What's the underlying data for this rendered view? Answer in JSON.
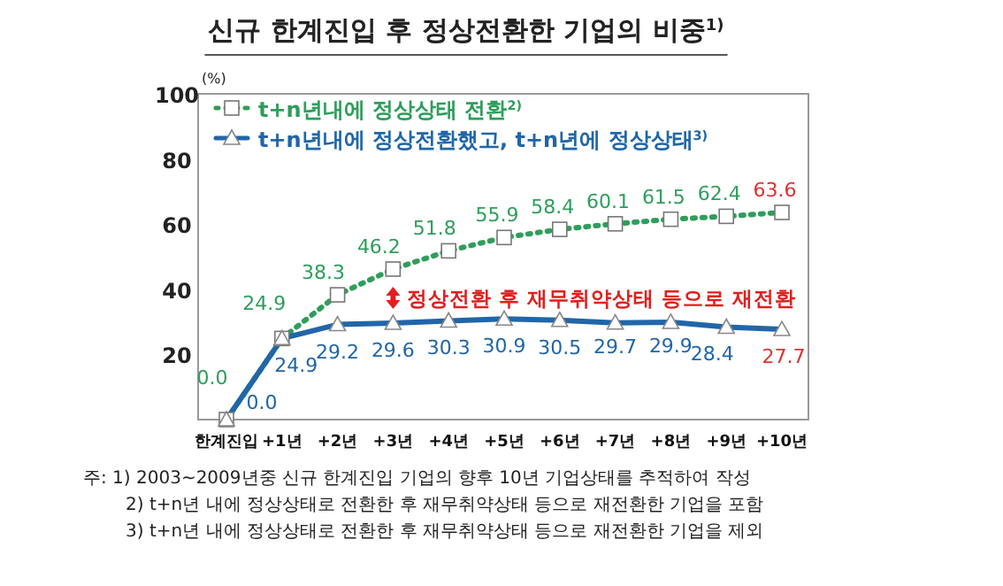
{
  "chart_data": {
    "type": "line",
    "title": "신규 한계진입 후 정상전환한 기업의 비중$^{1)}$",
    "ylabel": "(%)",
    "categories": [
      "한계진입",
      "+1년",
      "+2년",
      "+3년",
      "+4년",
      "+5년",
      "+6년",
      "+7년",
      "+8년",
      "+9년",
      "+10년"
    ],
    "series": [
      {
        "name": "t+n년내에 정상상태 전환$^{2)}$",
        "color": "#2e9e5b",
        "marker": "square",
        "line_style": "dotted",
        "values": [
          0.0,
          24.9,
          38.3,
          46.2,
          51.8,
          55.9,
          58.4,
          60.1,
          61.5,
          62.4,
          63.6
        ],
        "value_labels": [
          "0.0",
          "24.9",
          "38.3",
          "46.2",
          "51.8",
          "55.9",
          "58.4",
          "60.1",
          "61.5",
          "62.4",
          "63.6"
        ]
      },
      {
        "name": "t+n년내에 정상전환했고, t+n년에 정상상태$^{3)}$",
        "color": "#2166a8",
        "marker": "triangle",
        "line_style": "solid",
        "values": [
          0.0,
          24.9,
          29.2,
          29.6,
          30.3,
          30.9,
          30.5,
          29.7,
          29.9,
          28.4,
          27.7
        ],
        "value_labels": [
          "0.0",
          "24.9",
          "29.2",
          "29.6",
          "30.3",
          "30.9",
          "30.5",
          "29.7",
          "29.9",
          "28.4",
          "27.7"
        ]
      }
    ],
    "ylim": [
      0,
      100
    ],
    "yticks": [
      20,
      40,
      60,
      80,
      100
    ],
    "grid": false,
    "legend": "top left",
    "annotations": [
      "정상전환 후 재무취약상태 등으로 재전환",
      "주: 1) 2003~2009년중 신규 한계진입 기업의 향후 10년 기업상태를 추적하여 작성",
      "2) t+n년 내에 정상상태로 전환한 후 재무취약상태 등으로 재전환한 기업을 포함",
      "3) t+n년 내에 정상상태로 전환한 후 재무취약상태 등으로 재전환한 기업을 제외"
    ]
  }
}
